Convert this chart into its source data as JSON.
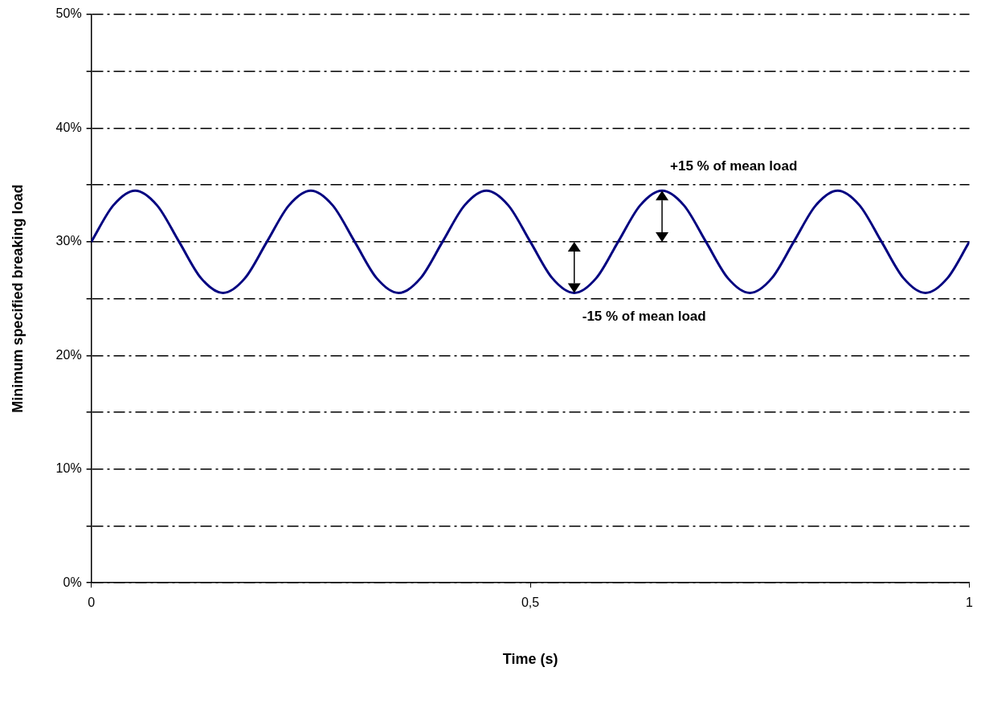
{
  "chart_data": {
    "type": "line",
    "xlabel": "Time (s)",
    "ylabel": "Minimum specified breaking load",
    "x": [
      0,
      0.025,
      0.05,
      0.075,
      0.1,
      0.125,
      0.15,
      0.175,
      0.2,
      0.225,
      0.25,
      0.275,
      0.3,
      0.325,
      0.35,
      0.375,
      0.4,
      0.425,
      0.45,
      0.475,
      0.5,
      0.525,
      0.55,
      0.575,
      0.6,
      0.625,
      0.65,
      0.675,
      0.7,
      0.725,
      0.75,
      0.775,
      0.8,
      0.825,
      0.85,
      0.875,
      0.9,
      0.925,
      0.95,
      0.975,
      1
    ],
    "series": [
      {
        "color": "#000080",
        "values": [
          30,
          33.2,
          34.5,
          33.2,
          30,
          26.8,
          25.5,
          26.8,
          30,
          33.2,
          34.5,
          33.2,
          30,
          26.8,
          25.5,
          26.8,
          30,
          33.2,
          34.5,
          33.2,
          30,
          26.8,
          25.5,
          26.8,
          30,
          33.2,
          34.5,
          33.2,
          30,
          26.8,
          25.5,
          26.8,
          30,
          33.2,
          34.5,
          33.2,
          30,
          26.8,
          25.5,
          26.8,
          30
        ]
      }
    ],
    "xlim": [
      0,
      1
    ],
    "xticks": [
      0,
      {
        "value": 0.5,
        "label": "0,5"
      },
      1
    ],
    "ylim": [
      0,
      50
    ],
    "yticks": [
      {
        "value": 0,
        "label": "0%"
      },
      {
        "value": 5,
        "label": null
      },
      {
        "value": 10,
        "label": "10%"
      },
      {
        "value": 15,
        "label": null
      },
      {
        "value": 20,
        "label": "20%"
      },
      {
        "value": 25,
        "label": null
      },
      {
        "value": 30,
        "label": "30%"
      },
      {
        "value": 35,
        "label": null
      },
      {
        "value": 40,
        "label": "40%"
      },
      {
        "value": 45,
        "label": null
      },
      {
        "value": 50,
        "label": "50%"
      }
    ],
    "grid": "y",
    "legend": false,
    "marker": "none",
    "line_style": "solid",
    "annotations": [
      {
        "text": "+15 % of mean load",
        "x": 0.65,
        "y": 34.5
      },
      {
        "text": "-15 % of mean load",
        "x": 0.55,
        "y": 25.5
      }
    ]
  }
}
